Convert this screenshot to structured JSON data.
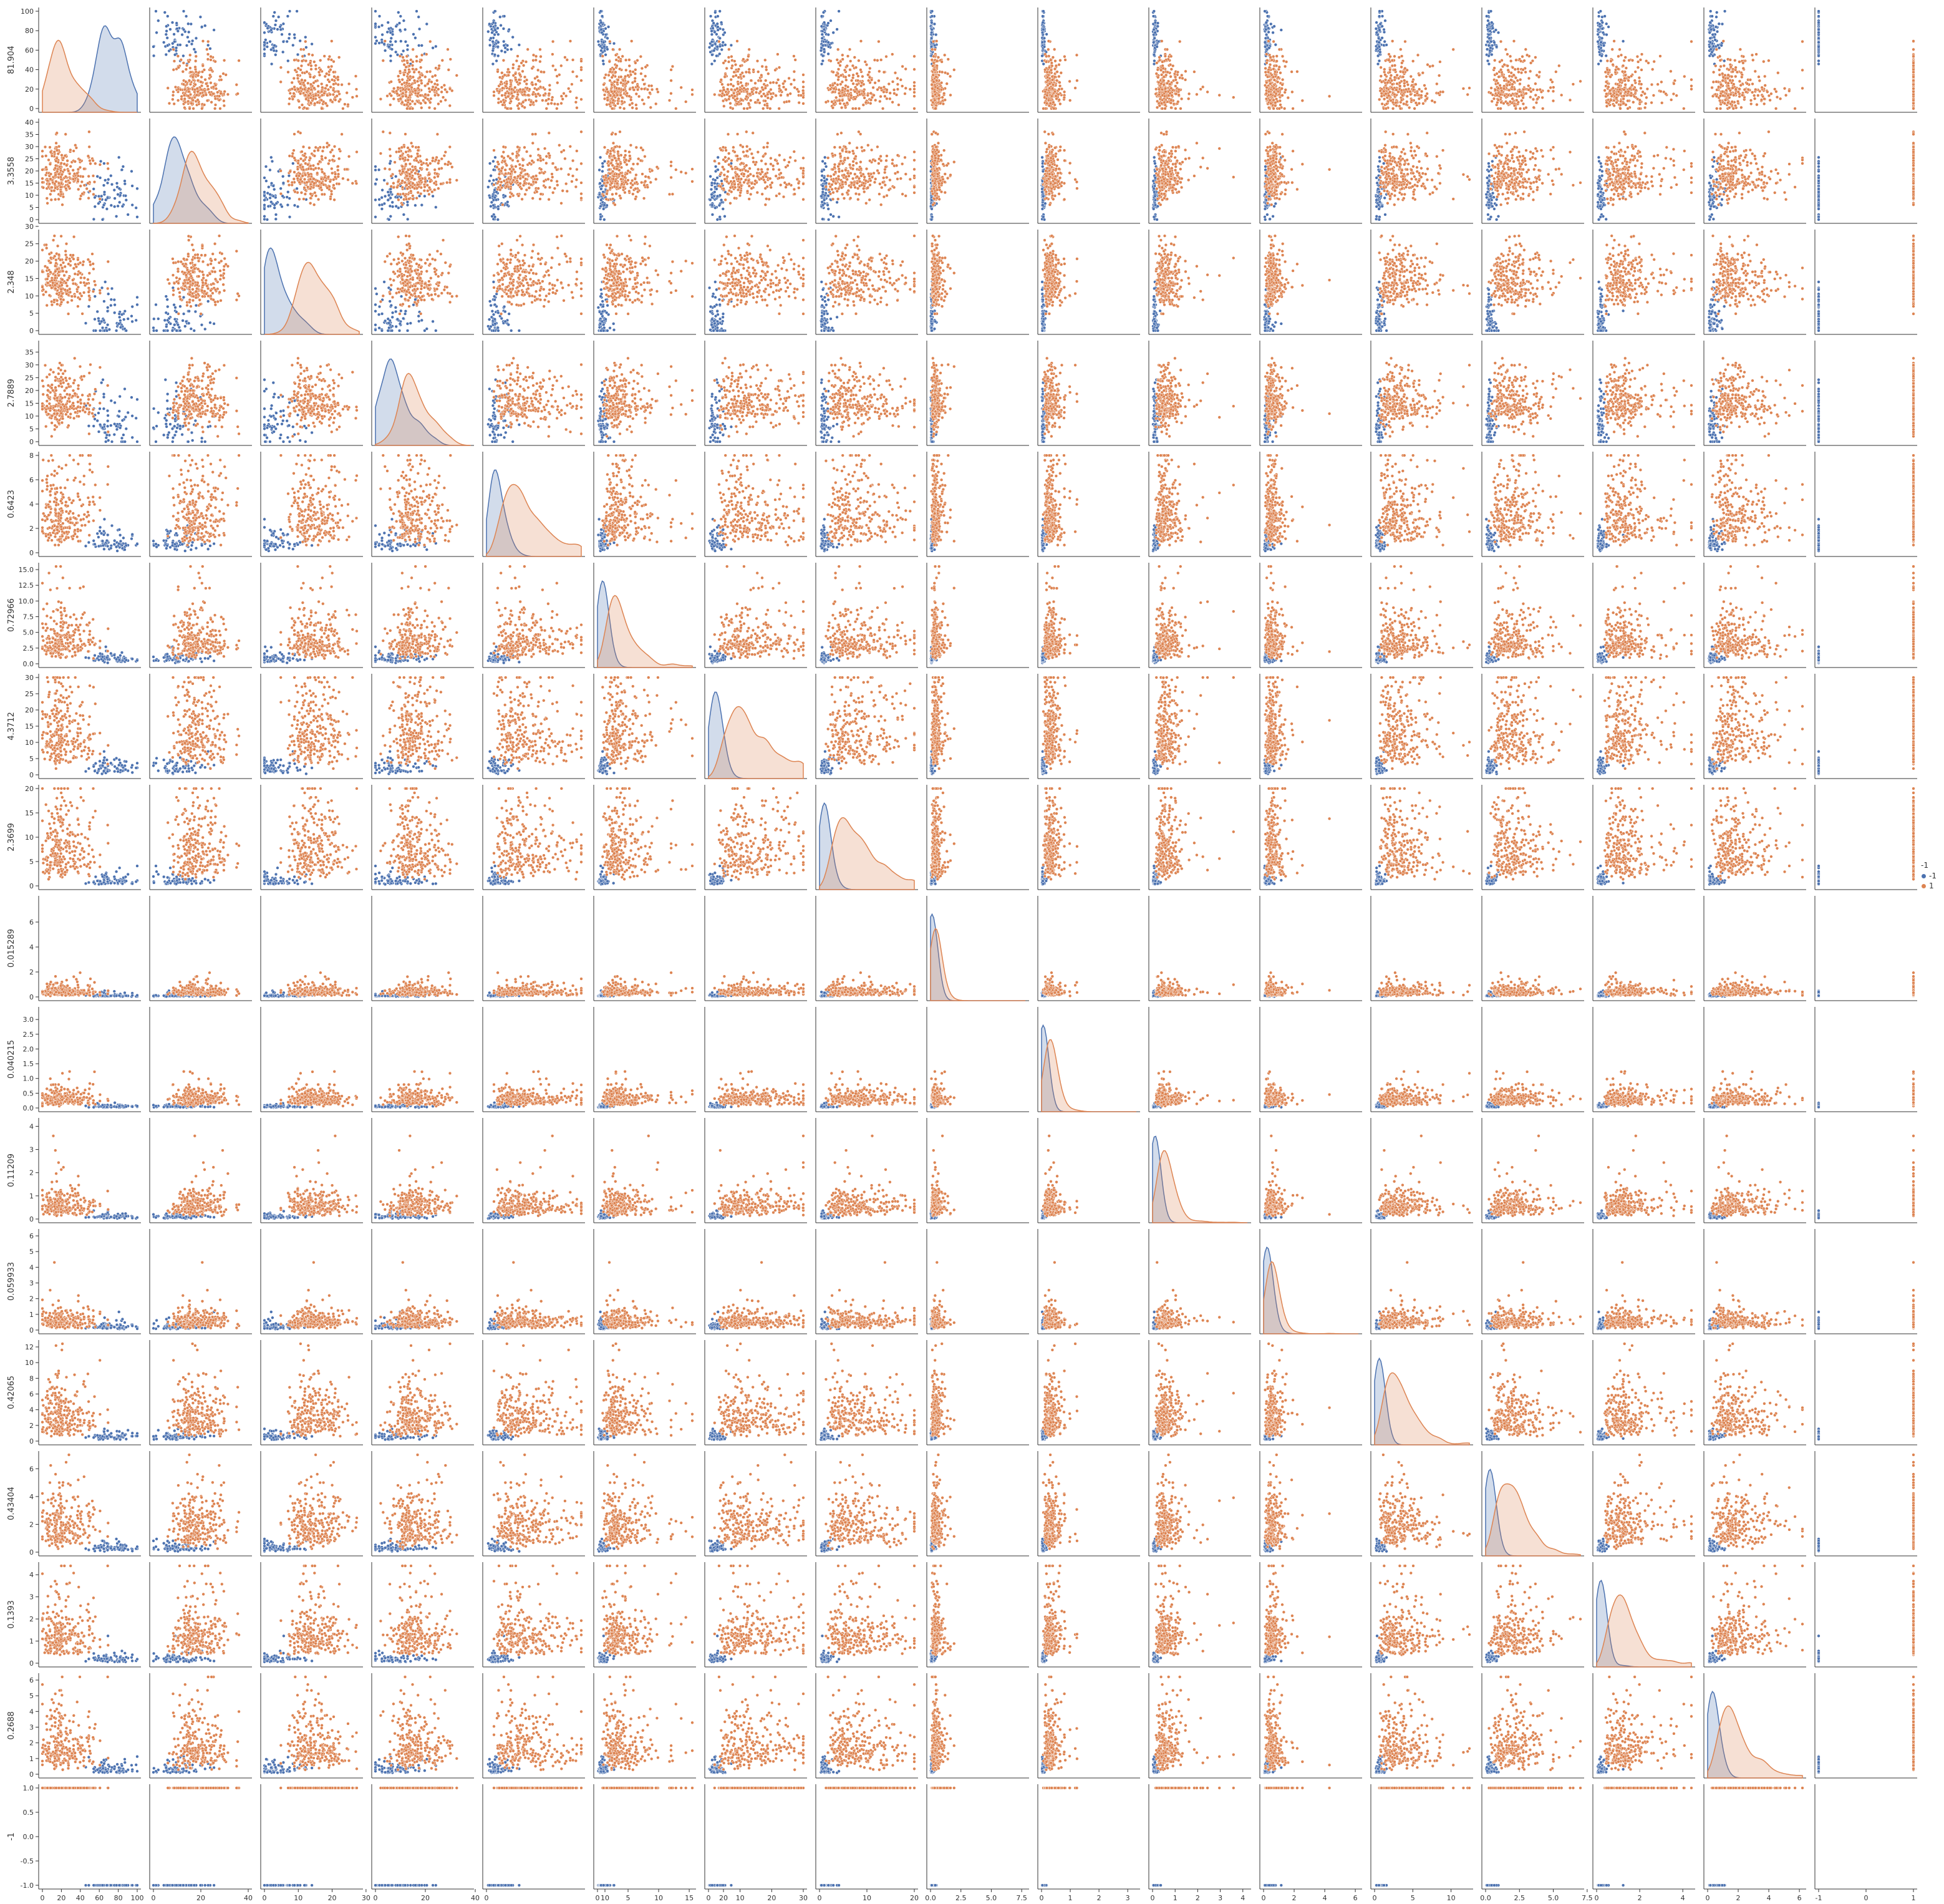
{
  "chart_data": {
    "type": "scatter",
    "kind": "pairplot",
    "variables": [
      "81.904",
      "3.3558",
      "2.348",
      "2.7889",
      "0.6423",
      "0.72966",
      "4.3712",
      "2.3699",
      "0.015289",
      "0.040215",
      "0.11209",
      "0.059933",
      "0.42065",
      "0.43404",
      "0.1393",
      "0.2688",
      "-1"
    ],
    "hue": "-1",
    "diagonal": "kde",
    "grid": false,
    "legend": {
      "title": "-1",
      "position": "right-center",
      "entries": [
        {
          "label": "-1",
          "color": "#4c72b0"
        },
        {
          "label": "1",
          "color": "#dd8452"
        }
      ]
    },
    "ticks": [
      {
        "ticks": [
          0,
          20,
          40,
          60,
          80,
          100
        ],
        "labels": [
          "0",
          "20",
          "40",
          "60",
          "80",
          "100"
        ]
      },
      {
        "ticks": [
          0,
          5,
          10,
          15,
          20,
          25,
          30,
          35,
          40
        ],
        "labels": [
          "0",
          "5",
          "10",
          "15",
          "20",
          "25",
          "30",
          "35",
          "40"
        ],
        "xticks": [
          0,
          20,
          40
        ],
        "xlabels": [
          "0",
          "20",
          "40"
        ]
      },
      {
        "ticks": [
          0,
          5,
          10,
          15,
          20,
          25,
          30
        ],
        "labels": [
          "0",
          "5",
          "10",
          "15",
          "20",
          "25",
          "30"
        ],
        "xticks": [
          0,
          10,
          20,
          30
        ],
        "xlabels": [
          "0",
          "10",
          "20",
          "30"
        ]
      },
      {
        "ticks": [
          0,
          5,
          10,
          15,
          20,
          25,
          30,
          35
        ],
        "labels": [
          "0",
          "5",
          "10",
          "15",
          "20",
          "25",
          "30",
          "35"
        ],
        "xticks": [
          0,
          20,
          40
        ],
        "xlabels": [
          "0",
          "20",
          "40"
        ]
      },
      {
        "ticks": [
          0,
          2,
          4,
          6,
          8
        ],
        "labels": [
          "0",
          "2",
          "4",
          "6",
          "8"
        ],
        "xticks": [
          0,
          10,
          20
        ],
        "xlabels": [
          "0",
          "10",
          "20"
        ]
      },
      {
        "ticks": [
          0,
          2.5,
          5,
          7.5,
          10,
          12.5,
          15
        ],
        "labels": [
          "0.0",
          "2.5",
          "5.0",
          "7.5",
          "10.0",
          "12.5",
          "15.0"
        ],
        "xticks": [
          0,
          5,
          10,
          15
        ],
        "xlabels": [
          "0",
          "5",
          "10",
          "15"
        ]
      },
      {
        "ticks": [
          0,
          5,
          10,
          15,
          20,
          25,
          30
        ],
        "labels": [
          "0",
          "5",
          "10",
          "15",
          "20",
          "25",
          "30"
        ],
        "xticks": [
          0,
          10,
          20,
          30
        ],
        "xlabels": [
          "0",
          "10",
          "20",
          "30"
        ]
      },
      {
        "ticks": [
          0,
          5,
          10,
          15,
          20
        ],
        "labels": [
          "0",
          "5",
          "10",
          "15",
          "20"
        ],
        "xticks": [
          0,
          10,
          20
        ],
        "xlabels": [
          "0",
          "10",
          "20"
        ]
      },
      {
        "ticks": [
          0,
          2,
          4,
          6
        ],
        "labels": [
          "0",
          "2",
          "4",
          "6"
        ],
        "xticks": [
          0,
          2.5,
          5,
          7.5
        ],
        "xlabels": [
          "0.0",
          "2.5",
          "5.0",
          "7.5"
        ]
      },
      {
        "ticks": [
          0,
          0.5,
          1,
          1.5,
          2,
          2.5,
          3
        ],
        "labels": [
          "0.0",
          "0.5",
          "1.0",
          "1.5",
          "2.0",
          "2.5",
          "3.0"
        ],
        "xticks": [
          0,
          1,
          2,
          3
        ],
        "xlabels": [
          "0",
          "1",
          "2",
          "3"
        ]
      },
      {
        "ticks": [
          0,
          1,
          2,
          3,
          4
        ],
        "labels": [
          "0",
          "1",
          "2",
          "3",
          "4"
        ]
      },
      {
        "ticks": [
          0,
          1,
          2,
          3,
          4,
          5,
          6
        ],
        "labels": [
          "0",
          "1",
          "2",
          "3",
          "4",
          "5",
          "6"
        ],
        "xticks": [
          0,
          2,
          4,
          6
        ],
        "xlabels": [
          "0",
          "2",
          "4",
          "6"
        ]
      },
      {
        "ticks": [
          0,
          2,
          4,
          6,
          8,
          10,
          12
        ],
        "labels": [
          "0",
          "2",
          "4",
          "6",
          "8",
          "10",
          "12"
        ],
        "xticks": [
          0,
          5,
          10
        ],
        "xlabels": [
          "0",
          "5",
          "10"
        ]
      },
      {
        "ticks": [
          0,
          2,
          4,
          6
        ],
        "labels": [
          "0",
          "2",
          "4",
          "6"
        ],
        "xticks": [
          0,
          2.5,
          5,
          7.5
        ],
        "xlabels": [
          "0.0",
          "2.5",
          "5.0",
          "7.5"
        ]
      },
      {
        "ticks": [
          0,
          1,
          2,
          3,
          4
        ],
        "labels": [
          "0",
          "1",
          "2",
          "3",
          "4"
        ],
        "xticks": [
          0,
          2,
          4
        ],
        "xlabels": [
          "0",
          "2",
          "4"
        ]
      },
      {
        "ticks": [
          0,
          1,
          2,
          3,
          4,
          5,
          6
        ],
        "labels": [
          "0",
          "1",
          "2",
          "3",
          "4",
          "5",
          "6"
        ],
        "xticks": [
          0,
          2,
          4,
          6
        ],
        "xlabels": [
          "0",
          "2",
          "4",
          "6"
        ]
      },
      {
        "ticks": [
          -1,
          -0.5,
          0,
          0.5,
          1
        ],
        "labels": [
          "-1.0",
          "-0.5",
          "0.0",
          "0.5",
          "1.0"
        ],
        "xticks": [
          -1,
          0,
          1
        ],
        "xlabels": [
          "-1",
          "0",
          "1"
        ]
      }
    ],
    "ranges": [
      [
        0,
        100
      ],
      [
        0,
        40
      ],
      [
        0,
        28
      ],
      [
        0,
        38
      ],
      [
        0,
        8
      ],
      [
        0,
        15.5
      ],
      [
        0,
        30
      ],
      [
        0,
        20
      ],
      [
        0,
        7.8
      ],
      [
        0,
        3.3
      ],
      [
        0,
        4.2
      ],
      [
        0,
        6.2
      ],
      [
        0,
        12.4
      ],
      [
        0,
        7
      ],
      [
        0,
        4.4
      ],
      [
        0,
        6.2
      ],
      [
        -1,
        1
      ]
    ]
  }
}
